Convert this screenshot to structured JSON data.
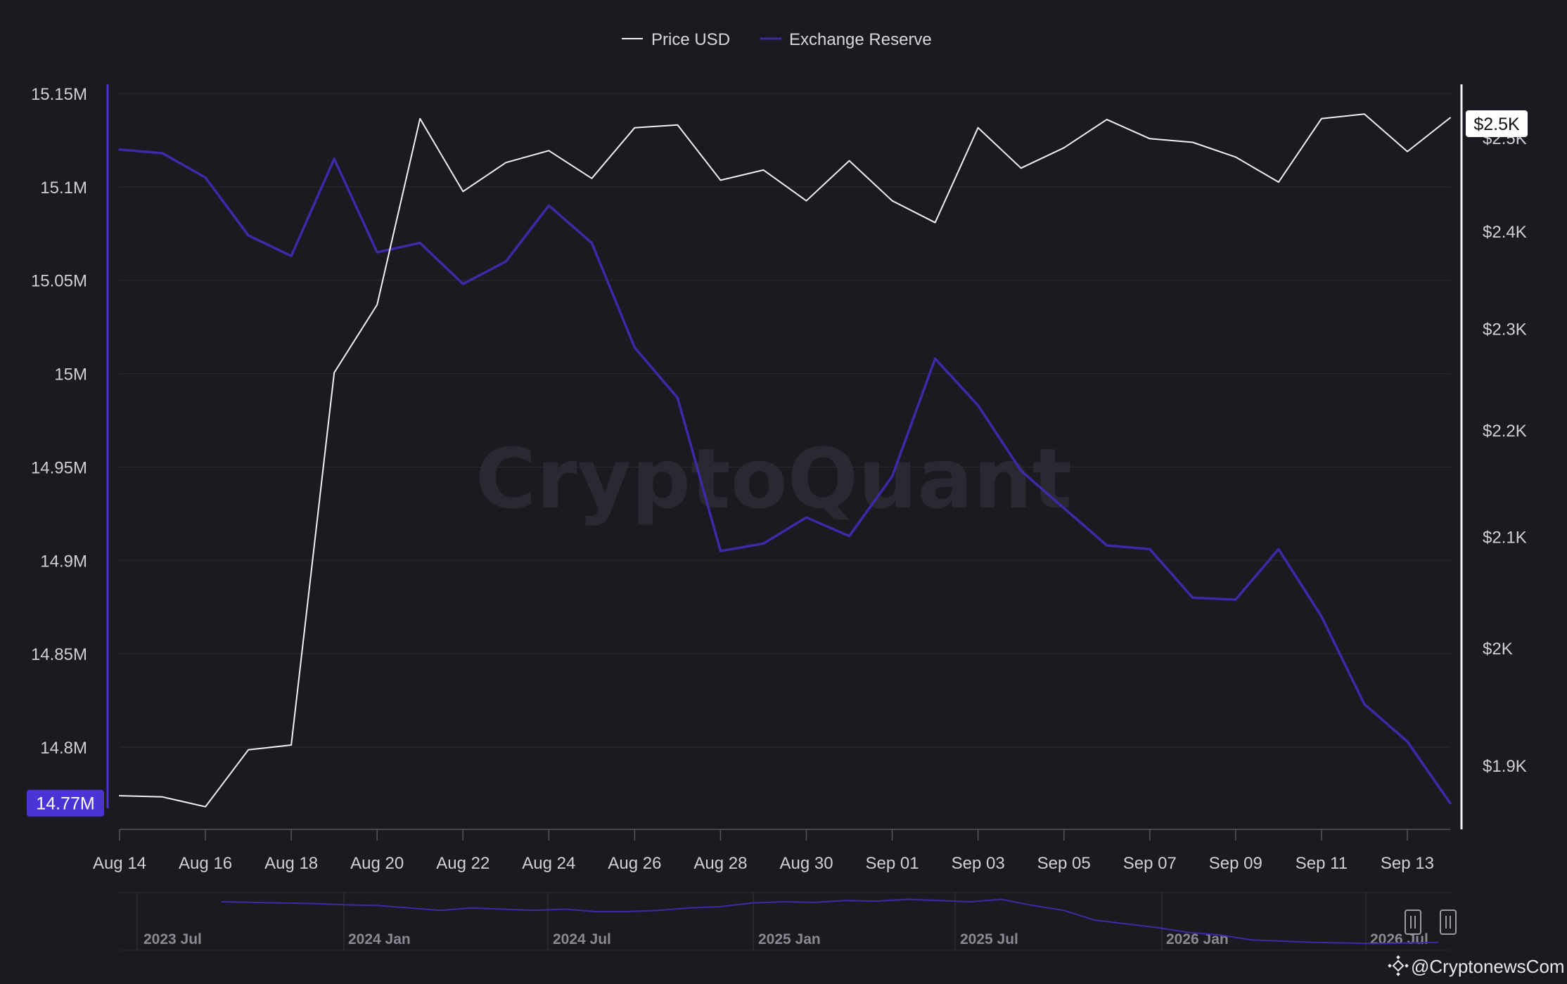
{
  "legend": {
    "price_label": "Price USD",
    "reserve_label": "Exchange Reserve"
  },
  "watermark": "CryptoQuant",
  "credit": "@CryptonewsCom",
  "current_values": {
    "reserve_label": "14.77M",
    "price_label": "$2.5K"
  },
  "colors": {
    "background": "#1b1a21",
    "price_line": "#f2f2f4",
    "reserve_line": "#3e2aa8",
    "reserve_badge": "#4b34d6",
    "grid": "#2c2b33"
  },
  "navigator": {
    "labels": [
      "2023 Jul",
      "2024 Jan",
      "2024 Jul",
      "2025 Jan",
      "2025 Jul",
      "2026 Jan",
      "2026 Jul"
    ],
    "reserve_trend": [
      15.72,
      15.71,
      15.7,
      15.69,
      15.67,
      15.66,
      15.62,
      15.58,
      15.62,
      15.6,
      15.58,
      15.6,
      15.56,
      15.56,
      15.58,
      15.62,
      15.64,
      15.7,
      15.72,
      15.71,
      15.74,
      15.73,
      15.76,
      15.74,
      15.72,
      15.76,
      15.66,
      15.58,
      15.42,
      15.36,
      15.3,
      15.22,
      15.18,
      15.1,
      15.08,
      15.06,
      15.05,
      15.04,
      15.05,
      15.06
    ]
  },
  "chart_data": {
    "type": "line",
    "title": "",
    "xlabel": "",
    "categories": [
      "Aug 14",
      "Aug 15",
      "Aug 16",
      "Aug 17",
      "Aug 18",
      "Aug 19",
      "Aug 20",
      "Aug 21",
      "Aug 22",
      "Aug 23",
      "Aug 24",
      "Aug 25",
      "Aug 26",
      "Aug 27",
      "Aug 28",
      "Aug 29",
      "Aug 30",
      "Aug 31",
      "Sep 01",
      "Sep 02",
      "Sep 03",
      "Sep 04",
      "Sep 05",
      "Sep 06",
      "Sep 07",
      "Sep 08",
      "Sep 09",
      "Sep 10",
      "Sep 11",
      "Sep 12",
      "Sep 13",
      "Sep 14"
    ],
    "x_tick_labels": [
      "Aug 14",
      "Aug 16",
      "Aug 18",
      "Aug 20",
      "Aug 22",
      "Aug 24",
      "Aug 26",
      "Aug 28",
      "Aug 30",
      "Sep 01",
      "Sep 03",
      "Sep 05",
      "Sep 07",
      "Sep 09",
      "Sep 11",
      "Sep 13"
    ],
    "x_tick_indices": [
      0,
      2,
      4,
      6,
      8,
      10,
      12,
      14,
      16,
      18,
      20,
      22,
      24,
      26,
      28,
      30
    ],
    "left_axis": {
      "ylim": [
        14.755,
        15.155
      ],
      "ticks": [
        15.15,
        15.1,
        15.05,
        15.0,
        14.95,
        14.9,
        14.85,
        14.8
      ],
      "tick_labels": [
        "15.15M",
        "15.1M",
        "15.05M",
        "15M",
        "14.95M",
        "14.9M",
        "14.85M",
        "14.8M"
      ]
    },
    "right_axis": {
      "ticks": [
        1.9,
        2.0,
        2.1,
        2.2,
        2.3,
        2.4,
        2.5
      ],
      "tick_labels": [
        "$1.9K",
        "$2K",
        "$2.1K",
        "$2.2K",
        "$2.3K",
        "$2.4K",
        "$2.5K"
      ]
    },
    "series": [
      {
        "name": "Exchange Reserve",
        "axis": "left",
        "unit": "M",
        "values": [
          15.12,
          15.118,
          15.105,
          15.074,
          15.063,
          15.115,
          15.065,
          15.07,
          15.048,
          15.06,
          15.09,
          15.07,
          15.014,
          14.987,
          14.905,
          14.909,
          14.923,
          14.913,
          14.945,
          15.008,
          14.983,
          14.948,
          14.928,
          14.908,
          14.906,
          14.88,
          14.879,
          14.906,
          14.87,
          14.823,
          14.803,
          14.77
        ]
      },
      {
        "name": "Price USD",
        "axis": "right",
        "unit": "K",
        "values": [
          1.875,
          1.874,
          1.866,
          1.913,
          1.917,
          2.256,
          2.324,
          2.521,
          2.442,
          2.473,
          2.486,
          2.456,
          2.511,
          2.514,
          2.454,
          2.465,
          2.432,
          2.475,
          2.432,
          2.409,
          2.511,
          2.467,
          2.489,
          2.52,
          2.499,
          2.495,
          2.479,
          2.452,
          2.521,
          2.526,
          2.485,
          2.522
        ]
      }
    ],
    "grid": true,
    "legend_position": "top-center"
  }
}
